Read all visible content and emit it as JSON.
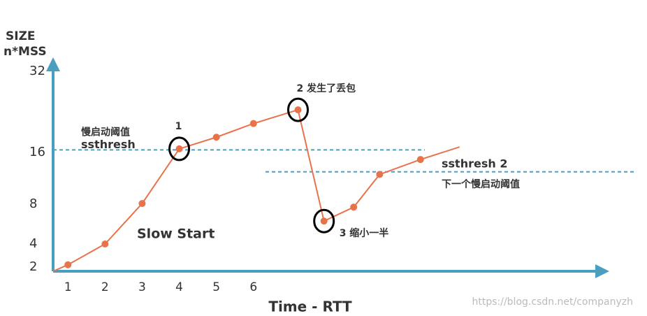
{
  "chart_data": {
    "type": "line",
    "y_label": [
      "SIZE",
      "n*MSS"
    ],
    "x_label": "Time - RTT",
    "xlim": [
      0.6,
      15.4
    ],
    "xticks": [
      1,
      2,
      3,
      4,
      5,
      6
    ],
    "yticks": [
      2,
      4,
      8,
      16,
      32
    ],
    "series": [
      {
        "color": "#e8734a",
        "x": [
          1,
          2,
          3,
          4,
          5,
          6,
          7.2,
          7.9,
          8.7,
          9.4,
          10.5
        ],
        "values": [
          2.2,
          4,
          8.1,
          16.7,
          19,
          21.7,
          24.4,
          6.3,
          7.7,
          12.6,
          14.9
        ]
      }
    ],
    "thresholds": [
      {
        "value": 16.5,
        "color": "#4a9fc0",
        "labels": [
          "慢启动阈值",
          "ssthresh"
        ]
      },
      {
        "value": 13,
        "color": "#4a9fc0",
        "labels": [
          "ssthresh 2",
          "下一个慢启动阈值"
        ]
      }
    ],
    "annotations": [
      "1",
      "2 发生了丢包",
      "3 缩小一半",
      "Slow Start"
    ],
    "watermark": "https://blog.csdn.net/companyzh"
  }
}
